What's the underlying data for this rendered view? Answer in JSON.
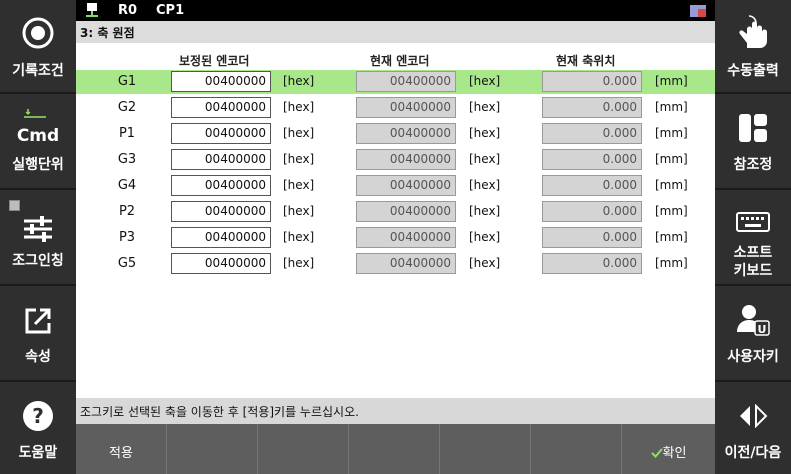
{
  "status_bar": {
    "robot": "R0",
    "program": "CP1"
  },
  "title": "3: 축 원점",
  "columns": {
    "calibrated": "보정된 엔코더",
    "current_encoder": "현재 엔코더",
    "current_position": "현재 축위치"
  },
  "units": {
    "hex": "[hex]",
    "mm": "[mm]"
  },
  "rows": [
    {
      "axis": "G1",
      "calibrated": "00400000",
      "encoder": "00400000",
      "position": "0.000"
    },
    {
      "axis": "G2",
      "calibrated": "00400000",
      "encoder": "00400000",
      "position": "0.000"
    },
    {
      "axis": "P1",
      "calibrated": "00400000",
      "encoder": "00400000",
      "position": "0.000"
    },
    {
      "axis": "G3",
      "calibrated": "00400000",
      "encoder": "00400000",
      "position": "0.000"
    },
    {
      "axis": "G4",
      "calibrated": "00400000",
      "encoder": "00400000",
      "position": "0.000"
    },
    {
      "axis": "P2",
      "calibrated": "00400000",
      "encoder": "00400000",
      "position": "0.000"
    },
    {
      "axis": "P3",
      "calibrated": "00400000",
      "encoder": "00400000",
      "position": "0.000"
    },
    {
      "axis": "G5",
      "calibrated": "00400000",
      "encoder": "00400000",
      "position": "0.000"
    }
  ],
  "status_message": "조그키로 선택된 축을 이동한 후 [적용]키를 누르십시오.",
  "left_menu": {
    "record": "기록조건",
    "exec_unit": "실행단위",
    "exec_cmd": "Cmd",
    "jog": "조그인칭",
    "props": "속성",
    "help": "도움말"
  },
  "right_menu": {
    "manual_output": "수동출력",
    "ref_window": "참조정",
    "soft_kb_1": "소프트",
    "soft_kb_2": "키보드",
    "user_key": "사용자키",
    "prev_next": "이전/다음"
  },
  "bottom": {
    "apply": "적용",
    "confirm": "확인"
  },
  "colors": {
    "selected_row": "#a9e88a",
    "panel": "#2f2f2f",
    "bottom_bar": "#5e5e5e"
  }
}
